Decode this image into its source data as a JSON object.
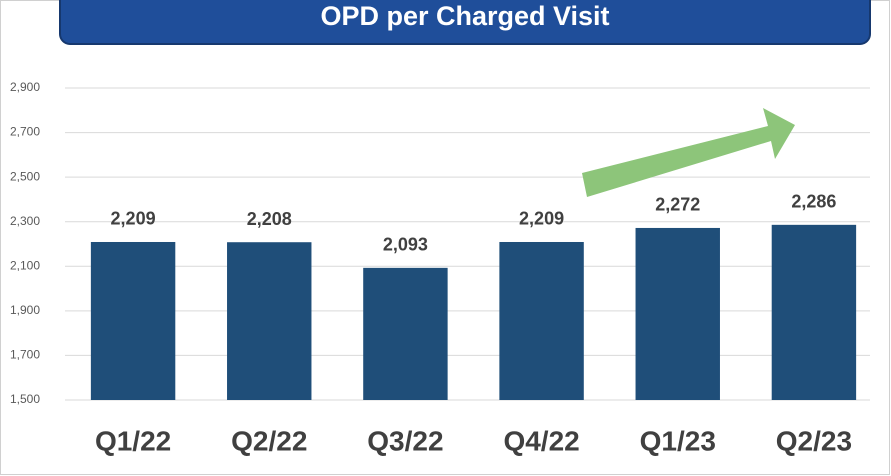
{
  "chart_data": {
    "type": "bar",
    "title": "OPD per Charged Visit",
    "categories": [
      "Q1/22",
      "Q2/22",
      "Q3/22",
      "Q4/22",
      "Q1/23",
      "Q2/23"
    ],
    "values": [
      2209,
      2208,
      2093,
      2209,
      2272,
      2286
    ],
    "value_labels": [
      "2,209",
      "2,208",
      "2,093",
      "2,209",
      "2,272",
      "2,286"
    ],
    "color": "#1f4e79",
    "ylim": [
      1500,
      2900
    ],
    "yticks": [
      {
        "value": 1500,
        "label": "1,500"
      },
      {
        "value": 1700,
        "label": "1,700"
      },
      {
        "value": 1900,
        "label": "1,900"
      },
      {
        "value": 2100,
        "label": "2,100"
      },
      {
        "value": 2300,
        "label": "2,300"
      },
      {
        "value": 2500,
        "label": "2,500"
      },
      {
        "value": 2700,
        "label": "2,700"
      },
      {
        "value": 2900,
        "label": "2,900"
      }
    ],
    "grid": true
  }
}
